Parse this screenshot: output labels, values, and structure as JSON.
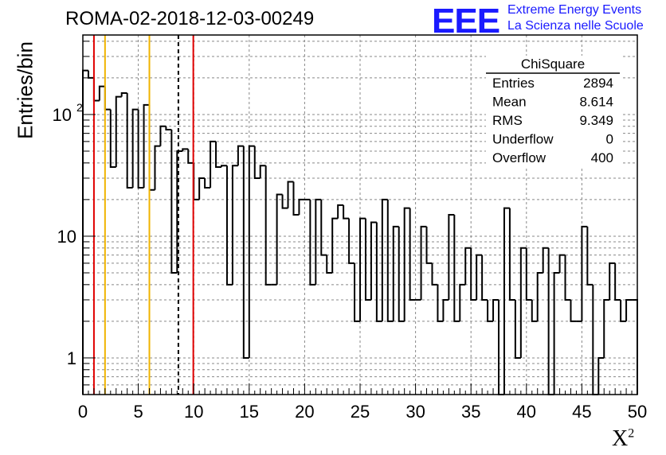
{
  "title": "ROMA-02-2018-12-03-00249",
  "logo": {
    "text": "EEE",
    "line1": "Extreme Energy Events",
    "line2": "La Scienza nelle Scuole",
    "color": "#1a1aff"
  },
  "chart_data": {
    "type": "bar",
    "title": "ROMA-02-2018-12-03-00249",
    "xlabel": "X²",
    "ylabel": "Entries/bin",
    "xlim": [
      0,
      50
    ],
    "ylim": [
      0.5,
      450
    ],
    "log_y": true,
    "grid": true,
    "bin_width": 0.5,
    "x_ticks": [
      "0",
      "5",
      "10",
      "15",
      "20",
      "25",
      "30",
      "35",
      "40",
      "45",
      "50"
    ],
    "y_ticks": [
      "1",
      "10",
      "10²"
    ],
    "values": [
      230,
      200,
      130,
      170,
      110,
      37,
      140,
      150,
      25,
      110,
      25,
      120,
      24,
      55,
      80,
      75,
      5,
      50,
      52,
      40,
      20,
      30,
      25,
      60,
      37,
      38,
      4,
      38,
      55,
      1,
      55,
      30,
      38,
      4,
      4,
      22,
      17,
      28,
      15,
      20,
      20,
      4,
      20,
      7,
      5,
      14,
      18,
      14,
      6,
      2,
      14,
      3,
      13,
      2,
      20,
      2,
      12,
      2,
      17,
      3,
      3,
      12,
      6,
      4,
      2,
      3,
      15,
      2,
      4,
      8,
      3,
      7,
      3,
      2,
      3,
      0.3,
      17,
      3,
      1,
      8,
      3,
      2,
      5,
      8,
      0.3,
      5,
      7,
      3,
      2,
      2,
      12,
      4,
      0.3,
      1,
      3,
      6,
      3,
      2,
      3,
      3
    ],
    "vlines": [
      {
        "x": 1.0,
        "color": "#e00000",
        "style": "solid"
      },
      {
        "x": 2.0,
        "color": "#f0b400",
        "style": "solid"
      },
      {
        "x": 6.0,
        "color": "#f0b400",
        "style": "solid"
      },
      {
        "x": 8.614,
        "color": "#000000",
        "style": "dashed"
      },
      {
        "x": 9.96,
        "color": "#e00000",
        "style": "solid"
      }
    ],
    "stats": {
      "header": "ChiSquare",
      "rows": [
        {
          "label": "Entries",
          "value": "2894"
        },
        {
          "label": "Mean",
          "value": "8.614"
        },
        {
          "label": "RMS",
          "value": "9.349"
        },
        {
          "label": "Underflow",
          "value": "0"
        },
        {
          "label": "Overflow",
          "value": "400"
        }
      ]
    }
  }
}
